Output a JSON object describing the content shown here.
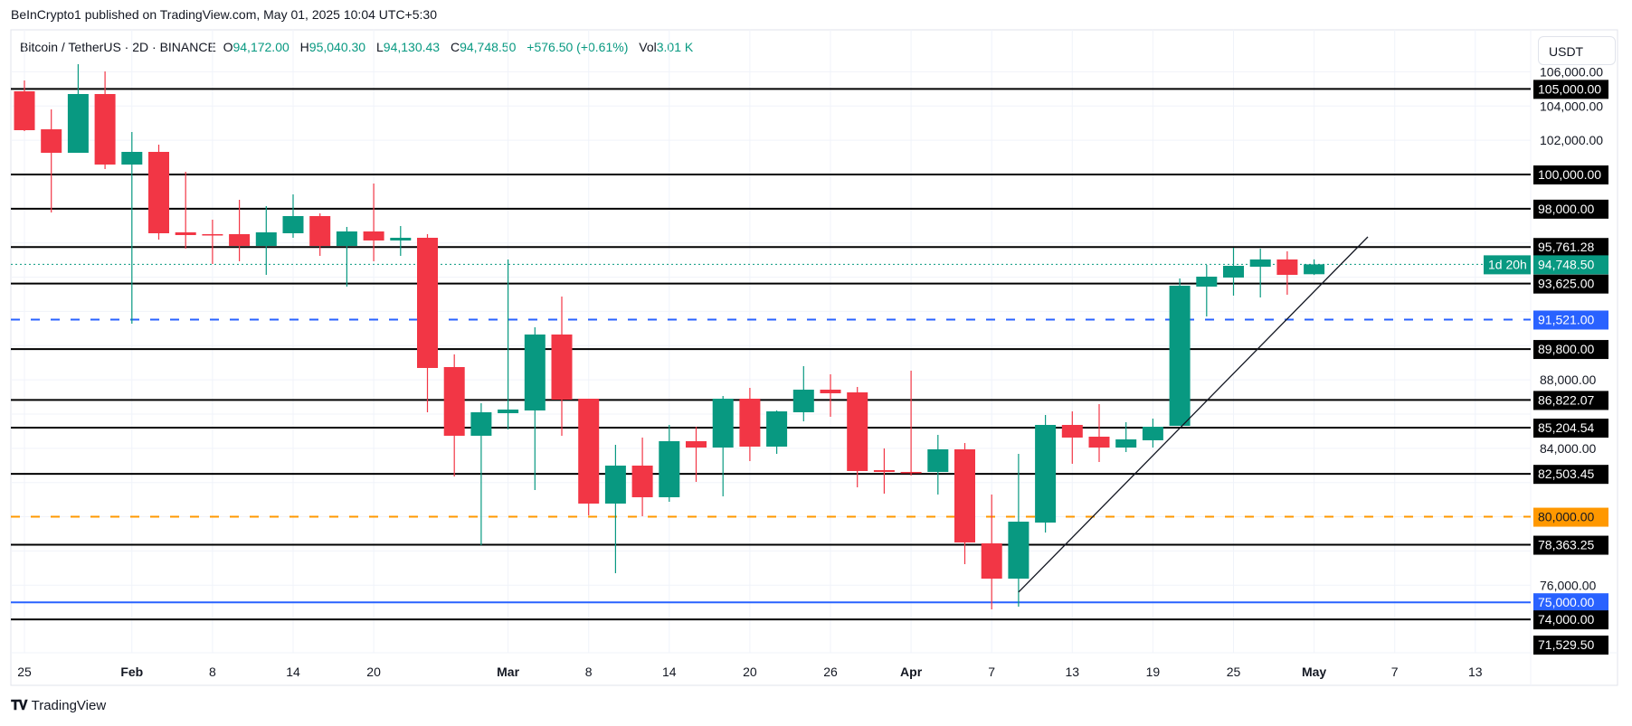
{
  "publish_line": "BeInCrypto1 published on TradingView.com, May 01, 2025 10:04 UTC+5:30",
  "legend": {
    "symbol": "Bitcoin / TetherUS · 2D · BINANCE",
    "open_label": "O",
    "open": "94,172.00",
    "high_label": "H",
    "high": "95,040.30",
    "low_label": "L",
    "low": "94,130.43",
    "close_label": "C",
    "close": "94,748.50",
    "change": "+576.50 (+0.61%)",
    "vol_label": "Vol",
    "vol": "3.01 K"
  },
  "currency_button": "USDT",
  "logo_text": "TradingView",
  "logo_mark": "TV",
  "colors": {
    "up": "#089981",
    "down": "#f23645",
    "blue": "#2962ff",
    "orange": "#ff9800",
    "level": "#000000"
  },
  "chart_data": {
    "type": "candlestick",
    "interval": "2D",
    "ylim": [
      71000,
      107000
    ],
    "grid": true,
    "y_ticks": [
      76000,
      78000,
      80000,
      82000,
      84000,
      86000,
      88000,
      90000,
      92000,
      94000,
      96000,
      98000,
      100000,
      102000,
      104000,
      106000
    ],
    "x_ticks": [
      {
        "label": "25",
        "date": "2025-01-25"
      },
      {
        "label": "Feb",
        "date": "2025-02-02"
      },
      {
        "label": "8",
        "date": "2025-02-08"
      },
      {
        "label": "14",
        "date": "2025-02-14"
      },
      {
        "label": "20",
        "date": "2025-02-20"
      },
      {
        "label": "Mar",
        "date": "2025-03-02"
      },
      {
        "label": "8",
        "date": "2025-03-08"
      },
      {
        "label": "14",
        "date": "2025-03-14"
      },
      {
        "label": "20",
        "date": "2025-03-20"
      },
      {
        "label": "26",
        "date": "2025-03-26"
      },
      {
        "label": "Apr",
        "date": "2025-04-01"
      },
      {
        "label": "7",
        "date": "2025-04-07"
      },
      {
        "label": "13",
        "date": "2025-04-13"
      },
      {
        "label": "19",
        "date": "2025-04-19"
      },
      {
        "label": "25",
        "date": "2025-04-25"
      },
      {
        "label": "May",
        "date": "2025-05-01"
      },
      {
        "label": "7",
        "date": "2025-05-07"
      },
      {
        "label": "13",
        "date": "2025-05-13"
      }
    ],
    "candles_columns": [
      "date",
      "open",
      "high",
      "low",
      "close"
    ],
    "candles": [
      [
        "2025-01-25",
        104860,
        105494,
        102536,
        102589
      ],
      [
        "2025-01-27",
        102641,
        103804,
        97781,
        101268
      ],
      [
        "2025-01-29",
        101268,
        106445,
        101268,
        104702
      ],
      [
        "2025-01-31",
        104702,
        106023,
        100317,
        100581
      ],
      [
        "2025-02-02",
        100581,
        102483,
        91283,
        101321
      ],
      [
        "2025-02-04",
        101321,
        101743,
        96196,
        96566
      ],
      [
        "2025-02-06",
        96619,
        100158,
        95668,
        96460
      ],
      [
        "2025-02-08",
        96513,
        97358,
        94770,
        96460
      ],
      [
        "2025-02-10",
        96513,
        98521,
        94928,
        95827
      ],
      [
        "2025-02-12",
        95827,
        98151,
        94136,
        96619
      ],
      [
        "2025-02-14",
        96566,
        98838,
        96302,
        97570
      ],
      [
        "2025-02-16",
        97570,
        97728,
        95245,
        95827
      ],
      [
        "2025-02-18",
        95827,
        96936,
        93449,
        96672
      ],
      [
        "2025-02-20",
        96672,
        99472,
        94928,
        96143
      ],
      [
        "2025-02-22",
        96143,
        96989,
        95245,
        96302
      ],
      [
        "2025-02-24",
        96302,
        96513,
        86106,
        88694
      ],
      [
        "2025-02-26",
        88747,
        89487,
        82355,
        84733
      ],
      [
        "2025-02-28",
        84733,
        86634,
        78340,
        86106
      ],
      [
        "2025-03-02",
        86053,
        95034,
        85102,
        86264
      ],
      [
        "2025-03-04",
        86211,
        91072,
        81562,
        90649
      ],
      [
        "2025-03-06",
        90649,
        92868,
        84733,
        86845
      ],
      [
        "2025-03-08",
        86898,
        86898,
        80083,
        80770
      ],
      [
        "2025-03-10",
        80770,
        84204,
        76702,
        82989
      ],
      [
        "2025-03-12",
        82989,
        84627,
        80030,
        81140
      ],
      [
        "2025-03-14",
        81140,
        85366,
        80875,
        84415
      ],
      [
        "2025-03-16",
        84415,
        85260,
        82038,
        84045
      ],
      [
        "2025-03-18",
        84045,
        87057,
        81193,
        86898
      ],
      [
        "2025-03-20",
        86898,
        87532,
        83253,
        84098
      ],
      [
        "2025-03-22",
        84098,
        86211,
        83676,
        86158
      ],
      [
        "2025-03-24",
        86106,
        88800,
        85577,
        87427
      ],
      [
        "2025-03-26",
        87427,
        88325,
        85841,
        87216
      ],
      [
        "2025-03-28",
        87269,
        87585,
        81721,
        82672
      ],
      [
        "2025-03-30",
        82725,
        83993,
        81351,
        82619
      ],
      [
        "2025-04-01",
        82619,
        88536,
        82408,
        82580
      ],
      [
        "2025-04-03",
        82619,
        84785,
        81299,
        83940
      ],
      [
        "2025-04-05",
        83940,
        84310,
        77231,
        78499
      ],
      [
        "2025-04-07",
        78446,
        81299,
        74589,
        76385
      ],
      [
        "2025-04-09",
        76385,
        83676,
        74747,
        79714
      ],
      [
        "2025-04-11",
        79661,
        85947,
        79080,
        85366
      ],
      [
        "2025-04-13",
        85366,
        86158,
        83095,
        84627
      ],
      [
        "2025-04-15",
        84679,
        86581,
        83200,
        84045
      ],
      [
        "2025-04-17",
        84045,
        85524,
        83781,
        84521
      ],
      [
        "2025-04-19",
        84468,
        85736,
        84045,
        85260
      ],
      [
        "2025-04-21",
        85313,
        93925,
        85313,
        93502
      ],
      [
        "2025-04-23",
        93449,
        94717,
        91706,
        94030
      ],
      [
        "2025-04-25",
        93978,
        95721,
        92921,
        94664
      ],
      [
        "2025-04-27",
        94611,
        95668,
        92815,
        95034
      ],
      [
        "2025-04-29",
        95034,
        95510,
        92974,
        94136
      ],
      [
        "2025-05-01",
        94172,
        95040.3,
        94130.43,
        94748.5
      ]
    ],
    "levels": [
      {
        "price": 105000,
        "label": "105,000.00",
        "style": "solid",
        "color": "#000000"
      },
      {
        "price": 100000,
        "label": "100,000.00",
        "style": "solid",
        "color": "#000000"
      },
      {
        "price": 98000,
        "label": "98,000.00",
        "style": "solid",
        "color": "#000000"
      },
      {
        "price": 95761.28,
        "label": "95,761.28",
        "style": "solid",
        "color": "#000000"
      },
      {
        "price": 93625,
        "label": "93,625.00",
        "style": "solid",
        "color": "#000000"
      },
      {
        "price": 91521,
        "label": "91,521.00",
        "style": "dashed",
        "color": "#2962ff"
      },
      {
        "price": 89800,
        "label": "89,800.00",
        "style": "solid",
        "color": "#000000"
      },
      {
        "price": 86822.07,
        "label": "86,822.07",
        "style": "solid",
        "color": "#000000"
      },
      {
        "price": 85204.54,
        "label": "85,204.54",
        "style": "solid",
        "color": "#000000"
      },
      {
        "price": 82503.45,
        "label": "82,503.45",
        "style": "solid",
        "color": "#000000"
      },
      {
        "price": 80000,
        "label": "80,000.00",
        "style": "dashed",
        "color": "#ff9800"
      },
      {
        "price": 78363.25,
        "label": "78,363.25",
        "style": "solid",
        "color": "#000000"
      },
      {
        "price": 75000,
        "label": "75,000.00",
        "style": "solid",
        "color": "#2962ff"
      },
      {
        "price": 74000,
        "label": "74,000.00",
        "style": "solid",
        "color": "#000000"
      },
      {
        "price": 71529.5,
        "label": "71,529.50",
        "style": "offscreen",
        "color": "#000000"
      }
    ],
    "current_price": {
      "price": 94748.5,
      "label": "94,748.50",
      "countdown": "1d 20h",
      "color": "#089981"
    },
    "trendline": {
      "start": {
        "date": "2025-04-09",
        "price": 75593
      },
      "end": {
        "date": "2025-05-05",
        "price": 96355
      }
    }
  }
}
